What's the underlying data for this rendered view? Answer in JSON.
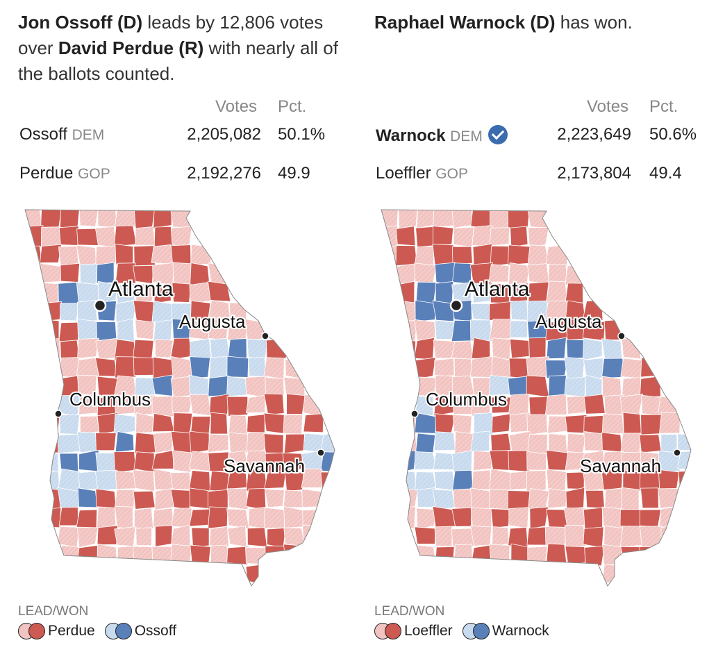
{
  "colors": {
    "rep_light": "#f2c4c1",
    "rep_dark": "#cc5a52",
    "dem_light": "#c8daee",
    "dem_dark": "#5a80ba",
    "county_border": "#ffffff",
    "state_border": "#888888"
  },
  "races": [
    {
      "headline": {
        "lead_name": "Jon Ossoff (D)",
        "mid": " leads by 12,806 votes over ",
        "trail_name": "David Perdue (R)",
        "tail": " with nearly all of the ballots counted."
      },
      "col_votes": "Votes",
      "col_pct": "Pct.",
      "rows": [
        {
          "name": "Ossoff",
          "party": "DEM",
          "votes": "2,205,082",
          "pct": "50.1%",
          "winner": false
        },
        {
          "name": "Perdue",
          "party": "GOP",
          "votes": "2,192,276",
          "pct": "49.9",
          "winner": false
        }
      ],
      "cities": {
        "atlanta": "Atlanta",
        "augusta": "Augusta",
        "columbus": "Columbus",
        "savannah": "Savannah"
      },
      "legend_title": "LEAD/WON",
      "legend": [
        {
          "label": "Perdue",
          "party": "rep"
        },
        {
          "label": "Ossoff",
          "party": "dem"
        }
      ]
    },
    {
      "headline": {
        "lead_name": "Raphael Warnock (D)",
        "mid": " has won.",
        "trail_name": "",
        "tail": ""
      },
      "col_votes": "Votes",
      "col_pct": "Pct.",
      "rows": [
        {
          "name": "Warnock",
          "party": "DEM",
          "votes": "2,223,649",
          "pct": "50.6%",
          "winner": true
        },
        {
          "name": "Loeffler",
          "party": "GOP",
          "votes": "2,173,804",
          "pct": "49.4",
          "winner": false
        }
      ],
      "cities": {
        "atlanta": "Atlanta",
        "augusta": "Augusta",
        "columbus": "Columbus",
        "savannah": "Savannah"
      },
      "legend_title": "LEAD/WON",
      "legend": [
        {
          "label": "Loeffler",
          "party": "rep"
        },
        {
          "label": "Warnock",
          "party": "dem"
        }
      ]
    }
  ]
}
